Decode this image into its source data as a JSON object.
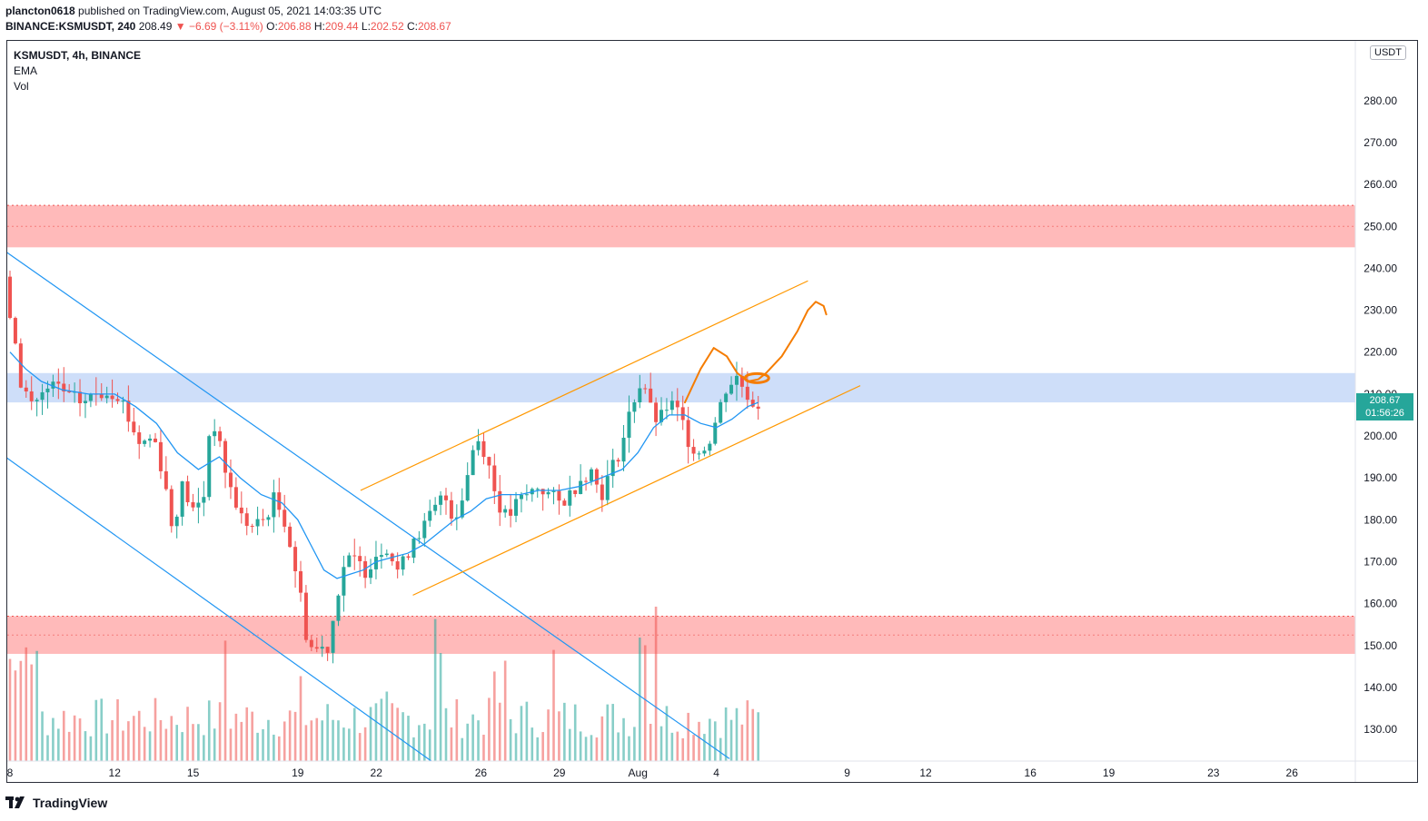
{
  "header": {
    "author": "plancton0618",
    "published_text": "published on TradingView.com, August 05, 2021 14:03:35 UTC",
    "symbol_line": "BINANCE:KSMUSDT, 240",
    "last": "208.49",
    "change": "▼ −6.69 (−3.11%)",
    "o_label": "O:",
    "o": "206.88",
    "h_label": "H:",
    "h": "209.44",
    "l_label": "L:",
    "l": "202.52",
    "c_label": "C:",
    "c": "208.67"
  },
  "legend": {
    "title": "KSMUSDT, 4h, BINANCE",
    "ema": "EMA",
    "vol": "Vol"
  },
  "price_axis": {
    "currency": "USDT",
    "current_price": "208.67",
    "countdown": "01:56:26",
    "ticks": [
      "130.00",
      "140.00",
      "150.00",
      "160.00",
      "170.00",
      "180.00",
      "190.00",
      "200.00",
      "210.00",
      "220.00",
      "230.00",
      "240.00",
      "250.00",
      "260.00",
      "270.00",
      "280.00"
    ]
  },
  "brand": {
    "name": "TradingView"
  },
  "colors": {
    "up": "#26a69a",
    "down": "#ef5350",
    "ema": "#2196f3",
    "channel": "#ff9800",
    "red_zone": "#ffb3b3",
    "blue_zone": "#c9daf8",
    "trendline": "#2196f3",
    "projection": "#f57c00"
  },
  "chart_data": {
    "type": "candlestick",
    "title": "KSMUSDT, 4h, BINANCE",
    "y_range": [
      122,
      290
    ],
    "x_ticks": [
      {
        "label": "8",
        "day": 8
      },
      {
        "label": "12",
        "day": 12
      },
      {
        "label": "15",
        "day": 15
      },
      {
        "label": "19",
        "day": 19
      },
      {
        "label": "22",
        "day": 22
      },
      {
        "label": "26",
        "day": 26
      },
      {
        "label": "29",
        "day": 29
      },
      {
        "label": "Aug",
        "day": 32
      },
      {
        "label": "4",
        "day": 35
      },
      {
        "label": "9",
        "day": 40
      },
      {
        "label": "12",
        "day": 43
      },
      {
        "label": "16",
        "day": 47
      },
      {
        "label": "19",
        "day": 50
      },
      {
        "label": "23",
        "day": 54
      },
      {
        "label": "26",
        "day": 57
      }
    ],
    "price_path": [
      [
        8.0,
        238
      ],
      [
        8.3,
        225
      ],
      [
        8.6,
        213
      ],
      [
        9.0,
        208
      ],
      [
        9.5,
        210
      ],
      [
        10,
        212
      ],
      [
        10.5,
        209
      ],
      [
        11,
        208
      ],
      [
        11.5,
        210
      ],
      [
        12,
        211
      ],
      [
        12.4,
        210
      ],
      [
        12.8,
        203
      ],
      [
        13.2,
        198
      ],
      [
        13.7,
        200
      ],
      [
        14.1,
        190
      ],
      [
        14.4,
        178
      ],
      [
        14.8,
        188
      ],
      [
        15.2,
        182
      ],
      [
        15.6,
        185
      ],
      [
        15.9,
        206
      ],
      [
        16.3,
        195
      ],
      [
        16.7,
        186
      ],
      [
        17.1,
        180
      ],
      [
        17.5,
        178
      ],
      [
        17.9,
        180
      ],
      [
        18.3,
        185
      ],
      [
        18.7,
        180
      ],
      [
        19.0,
        172
      ],
      [
        19.3,
        162
      ],
      [
        19.6,
        150
      ],
      [
        20.0,
        149
      ],
      [
        20.4,
        150
      ],
      [
        20.7,
        162
      ],
      [
        21.0,
        170
      ],
      [
        21.4,
        170
      ],
      [
        21.8,
        168
      ],
      [
        22.2,
        172
      ],
      [
        22.6,
        174
      ],
      [
        23.0,
        168
      ],
      [
        23.3,
        170
      ],
      [
        23.6,
        176
      ],
      [
        24.0,
        178
      ],
      [
        24.4,
        182
      ],
      [
        24.8,
        186
      ],
      [
        25.2,
        180
      ],
      [
        25.6,
        188
      ],
      [
        26.0,
        200
      ],
      [
        26.4,
        196
      ],
      [
        26.8,
        185
      ],
      [
        27.2,
        180
      ],
      [
        27.6,
        184
      ],
      [
        28.0,
        186
      ],
      [
        28.4,
        188
      ],
      [
        28.8,
        186
      ],
      [
        29.2,
        184
      ],
      [
        29.6,
        186
      ],
      [
        30.0,
        190
      ],
      [
        30.4,
        192
      ],
      [
        30.8,
        186
      ],
      [
        31.2,
        192
      ],
      [
        31.6,
        198
      ],
      [
        32.0,
        208
      ],
      [
        32.4,
        214
      ],
      [
        32.7,
        206
      ],
      [
        33.0,
        203
      ],
      [
        33.4,
        208
      ],
      [
        33.8,
        205
      ],
      [
        34.2,
        198
      ],
      [
        34.6,
        196
      ],
      [
        35.0,
        200
      ],
      [
        35.3,
        206
      ],
      [
        35.6,
        212
      ],
      [
        36.0,
        214
      ],
      [
        36.4,
        210
      ],
      [
        36.6,
        208
      ]
    ],
    "ema_path": [
      [
        8.0,
        220
      ],
      [
        8.6,
        216
      ],
      [
        9.2,
        213
      ],
      [
        10,
        211
      ],
      [
        11,
        210
      ],
      [
        12,
        210
      ],
      [
        12.8,
        207
      ],
      [
        13.6,
        203
      ],
      [
        14.4,
        196
      ],
      [
        15.2,
        192
      ],
      [
        16.0,
        195
      ],
      [
        16.8,
        190
      ],
      [
        17.6,
        186
      ],
      [
        18.4,
        184
      ],
      [
        19.0,
        180
      ],
      [
        19.5,
        174
      ],
      [
        20.0,
        168
      ],
      [
        20.5,
        166
      ],
      [
        21.0,
        167
      ],
      [
        21.5,
        168
      ],
      [
        22.0,
        170
      ],
      [
        22.6,
        171
      ],
      [
        23.2,
        172
      ],
      [
        23.8,
        174
      ],
      [
        24.4,
        177
      ],
      [
        25.0,
        180
      ],
      [
        25.6,
        182
      ],
      [
        26.2,
        185
      ],
      [
        26.8,
        186
      ],
      [
        27.5,
        186
      ],
      [
        28.2,
        187
      ],
      [
        29.0,
        187
      ],
      [
        29.8,
        188
      ],
      [
        30.6,
        190
      ],
      [
        31.4,
        192
      ],
      [
        32.0,
        196
      ],
      [
        32.6,
        202
      ],
      [
        33.2,
        205
      ],
      [
        33.8,
        205
      ],
      [
        34.4,
        203
      ],
      [
        35.0,
        202
      ],
      [
        35.6,
        204
      ],
      [
        36.2,
        207
      ],
      [
        36.6,
        208
      ]
    ],
    "volume_bars": 140,
    "zones": [
      {
        "name": "resistance",
        "low": 245,
        "high": 255,
        "color": "red"
      },
      {
        "name": "support",
        "low": 148,
        "high": 157,
        "color": "red"
      },
      {
        "name": "pivot",
        "low": 208,
        "high": 215,
        "color": "blue"
      }
    ],
    "trendlines": [
      {
        "name": "descending-upper",
        "from": [
          7.6,
          245
        ],
        "to": [
          35.5,
          123
        ]
      },
      {
        "name": "descending-lower",
        "from": [
          7.6,
          196
        ],
        "to": [
          24.2,
          122
        ]
      },
      {
        "name": "ascending-upper",
        "from": [
          21.4,
          187
        ],
        "to": [
          38.5,
          237
        ]
      },
      {
        "name": "ascending-lower",
        "from": [
          23.4,
          162
        ],
        "to": [
          40.5,
          212
        ]
      }
    ]
  }
}
